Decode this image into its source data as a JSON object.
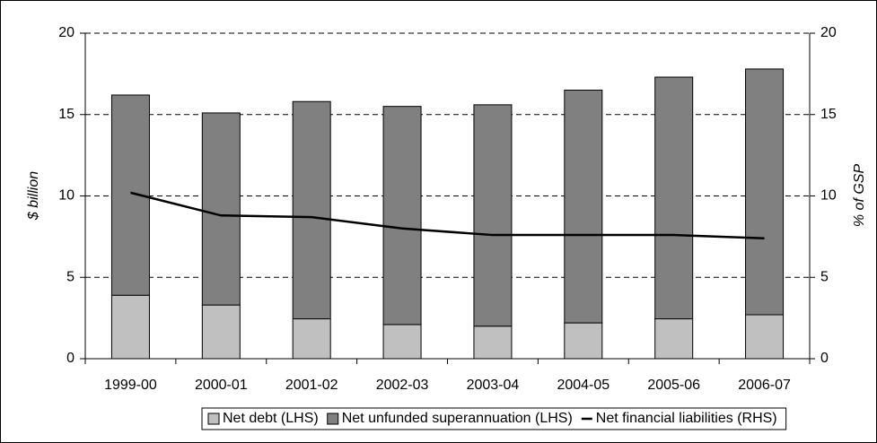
{
  "chart_data": {
    "type": "bar",
    "stacked": true,
    "categories": [
      "1999-00",
      "2000-01",
      "2001-02",
      "2002-03",
      "2003-04",
      "2004-05",
      "2005-06",
      "2006-07"
    ],
    "series": [
      {
        "name": "Net debt (LHS)",
        "type": "bar",
        "color": "#c0c0c0",
        "values": [
          3.9,
          3.3,
          2.45,
          2.1,
          2.0,
          2.2,
          2.45,
          2.7
        ]
      },
      {
        "name": "Net unfunded superannuation (LHS)",
        "type": "bar",
        "color": "#808080",
        "values": [
          12.3,
          11.8,
          13.35,
          13.4,
          13.6,
          14.3,
          14.85,
          15.1
        ]
      },
      {
        "name": "Net financial liabilities (RHS)",
        "type": "line",
        "axis": "y2",
        "color": "#000000",
        "values": [
          10.2,
          8.8,
          8.7,
          8.0,
          7.6,
          7.6,
          7.6,
          7.4
        ]
      }
    ],
    "ylabel": "$ billion",
    "y2label": "% of GSP",
    "ylim": [
      0,
      20
    ],
    "yticks": [
      0,
      5,
      10,
      15,
      20
    ],
    "y2lim": [
      0,
      20
    ],
    "y2ticks": [
      0,
      5,
      10,
      15,
      20
    ],
    "grid": true,
    "legend": "bottom"
  }
}
